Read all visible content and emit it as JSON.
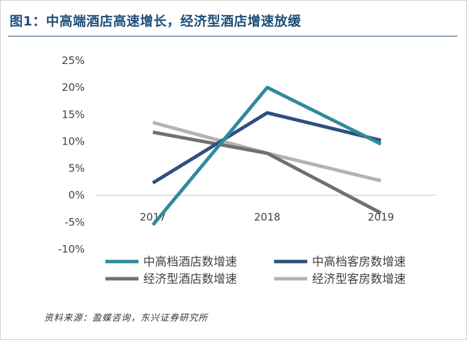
{
  "figure": {
    "title": "图1：中高端酒店高速增长，经济型酒店增速放缓",
    "source": "资料来源：盈蝶咨询，东兴证券研究所"
  },
  "chart_data": {
    "type": "line",
    "title": "",
    "xlabel": "",
    "ylabel": "",
    "x": [
      "2017",
      "2018",
      "2019"
    ],
    "ylim": [
      -10,
      25
    ],
    "yticks": [
      25,
      20,
      15,
      10,
      5,
      0,
      -5,
      -10
    ],
    "ytick_labels": [
      "25%",
      "20%",
      "15%",
      "10%",
      "5%",
      "0%",
      "-5%",
      "-10%"
    ],
    "grid": false,
    "legend_position": "bottom",
    "series": [
      {
        "name": "中高档酒店数增速",
        "values": [
          -5.5,
          20.0,
          9.5
        ],
        "color": "#2e8b9a"
      },
      {
        "name": "中高档客房数增速",
        "values": [
          2.3,
          15.3,
          10.2
        ],
        "color": "#2f4f7f"
      },
      {
        "name": "经济型酒店数增速",
        "values": [
          11.7,
          7.8,
          -3.3
        ],
        "color": "#707070"
      },
      {
        "name": "经济型客房数增速",
        "values": [
          13.5,
          7.8,
          2.7
        ],
        "color": "#b3b3b3"
      }
    ]
  }
}
